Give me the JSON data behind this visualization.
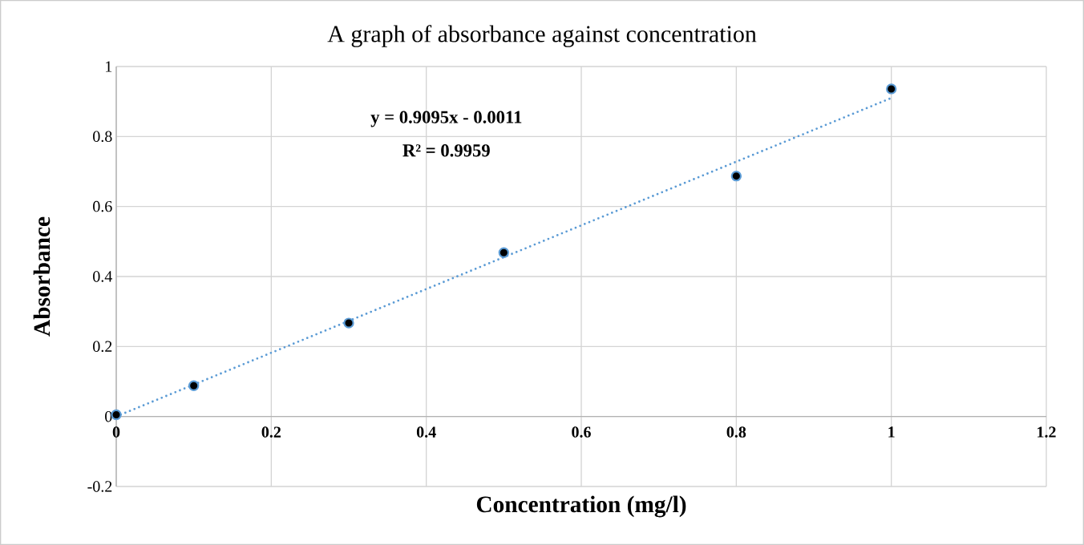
{
  "chart_data": {
    "type": "scatter",
    "title": "A graph of absorbance against concentration",
    "xlabel": "Concentration (mg/l)",
    "ylabel": "Absorbance",
    "annotations": [
      "y = 0.9095x - 0.0011",
      "R² = 0.9959"
    ],
    "x": [
      0,
      0.1,
      0.3,
      0.5,
      0.8,
      1
    ],
    "series": [
      {
        "color": "#000000",
        "marker": "circle",
        "values": [
          0.005,
          0.088,
          0.267,
          0.468,
          0.687,
          0.936
        ]
      },
      {
        "type": "line",
        "color": "#5b9bd5",
        "line_style": "dotted",
        "marker": "none",
        "x": [
          0,
          1
        ],
        "values": [
          0,
          0.91
        ]
      }
    ],
    "xlim": [
      0,
      1.2
    ],
    "xticks": [
      0,
      0.2,
      0.4,
      0.6,
      0.8,
      1,
      1.2
    ],
    "ylim": [
      -0.2,
      1
    ],
    "yticks": [
      -0.2,
      0,
      0.2,
      0.4,
      0.6,
      0.8,
      1
    ],
    "grid": true
  }
}
